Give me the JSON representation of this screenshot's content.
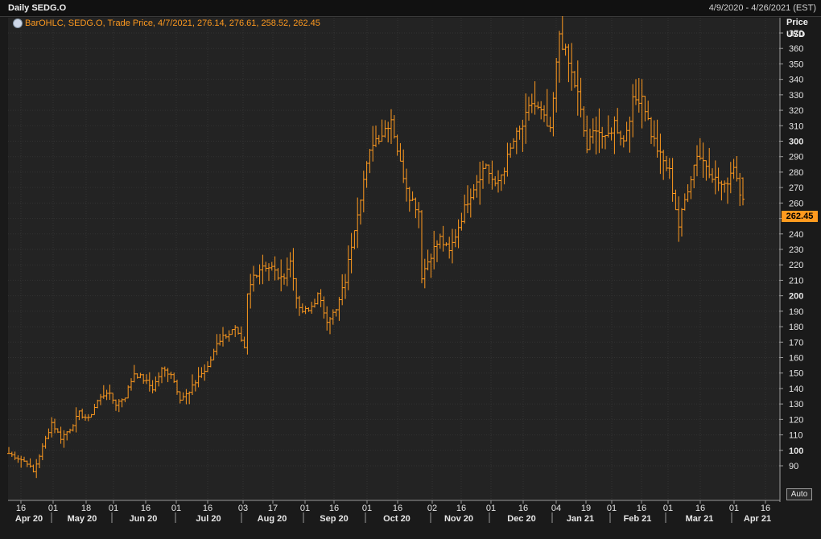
{
  "header": {
    "title": "Daily SEDG.O",
    "date_range": "4/9/2020 - 4/26/2021 (EST)"
  },
  "legend": {
    "text": "BarOHLC, SEDG.O, Trade Price,  4/7/2021, 276.14, 276.61, 258.52, 262.45"
  },
  "axis": {
    "price_label": "Price",
    "currency_label": "USD",
    "auto_label": "Auto"
  },
  "last_price": "262.45",
  "colors": {
    "background": "#1a1a1a",
    "plot_bg": "#232323",
    "bars": "#ff9a1f",
    "grid": "#333333",
    "text": "#e6e6e6"
  },
  "chart_data": {
    "type": "bar",
    "style": "ohlc",
    "ylim": [
      85,
      378
    ],
    "y_ticks": [
      90,
      100,
      110,
      120,
      130,
      140,
      150,
      160,
      170,
      180,
      190,
      200,
      210,
      220,
      230,
      240,
      250,
      260,
      270,
      280,
      290,
      300,
      310,
      320,
      330,
      340,
      350,
      360,
      370
    ],
    "y_ticks_bold": [
      100,
      200,
      300
    ],
    "x_day_ticks": [
      "16",
      "01",
      "18",
      "01",
      "16",
      "01",
      "16",
      "03",
      "17",
      "01",
      "16",
      "01",
      "16",
      "02",
      "16",
      "01",
      "16",
      "04",
      "19",
      "01",
      "16",
      "01",
      "16",
      "01",
      "16"
    ],
    "x_month_labels": [
      "Apr 20",
      "May 20",
      "Jun 20",
      "Jul 20",
      "Aug 20",
      "Sep 20",
      "Oct 20",
      "Nov 20",
      "Dec 20",
      "Jan 21",
      "Feb 21",
      "Mar 21",
      "Apr 21"
    ],
    "grid": true,
    "close_path": [
      [
        0,
        98
      ],
      [
        6,
        92
      ],
      [
        8,
        86
      ],
      [
        11,
        102
      ],
      [
        14,
        118
      ],
      [
        17,
        108
      ],
      [
        20,
        114
      ],
      [
        23,
        124
      ],
      [
        26,
        120
      ],
      [
        29,
        132
      ],
      [
        32,
        138
      ],
      [
        35,
        130
      ],
      [
        38,
        135
      ],
      [
        41,
        150
      ],
      [
        44,
        146
      ],
      [
        47,
        140
      ],
      [
        50,
        152
      ],
      [
        53,
        150
      ],
      [
        56,
        134
      ],
      [
        59,
        137
      ],
      [
        62,
        148
      ],
      [
        65,
        153
      ],
      [
        68,
        170
      ],
      [
        71,
        175
      ],
      [
        74,
        178
      ],
      [
        77,
        165
      ],
      [
        78,
        200
      ],
      [
        80,
        213
      ],
      [
        83,
        220
      ],
      [
        86,
        218
      ],
      [
        89,
        210
      ],
      [
        92,
        222
      ],
      [
        95,
        190
      ],
      [
        98,
        190
      ],
      [
        101,
        200
      ],
      [
        104,
        185
      ],
      [
        107,
        190
      ],
      [
        110,
        210
      ],
      [
        113,
        245
      ],
      [
        116,
        275
      ],
      [
        119,
        300
      ],
      [
        122,
        305
      ],
      [
        125,
        315
      ],
      [
        128,
        285
      ],
      [
        131,
        265
      ],
      [
        134,
        255
      ],
      [
        135,
        213
      ],
      [
        138,
        227
      ],
      [
        141,
        237
      ],
      [
        144,
        228
      ],
      [
        147,
        245
      ],
      [
        150,
        262
      ],
      [
        153,
        275
      ],
      [
        156,
        285
      ],
      [
        159,
        270
      ],
      [
        162,
        283
      ],
      [
        165,
        300
      ],
      [
        168,
        310
      ],
      [
        171,
        325
      ],
      [
        174,
        318
      ],
      [
        177,
        305
      ],
      [
        180,
        370
      ],
      [
        183,
        350
      ],
      [
        186,
        330
      ],
      [
        189,
        295
      ],
      [
        192,
        310
      ],
      [
        195,
        300
      ],
      [
        198,
        312
      ],
      [
        201,
        300
      ],
      [
        204,
        325
      ],
      [
        207,
        330
      ],
      [
        210,
        305
      ],
      [
        213,
        290
      ],
      [
        216,
        280
      ],
      [
        219,
        245
      ],
      [
        222,
        270
      ],
      [
        225,
        292
      ],
      [
        228,
        285
      ],
      [
        231,
        275
      ],
      [
        234,
        270
      ],
      [
        237,
        285
      ],
      [
        240,
        260
      ]
    ],
    "last_bar": {
      "date": "4/7/2021",
      "open": 276.14,
      "high": 276.61,
      "low": 258.52,
      "close": 262.45
    }
  }
}
